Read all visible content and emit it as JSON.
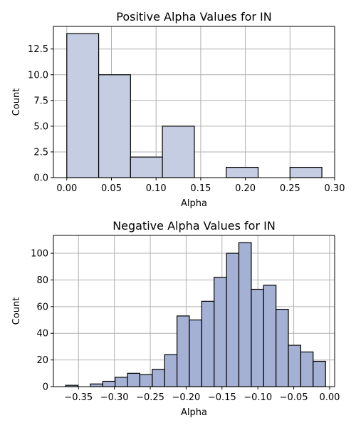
{
  "chart_data": [
    {
      "type": "bar",
      "title": "Positive Alpha Values for IN",
      "xlabel": "Alpha",
      "ylabel": "Count",
      "xlim": [
        -0.015,
        0.3
      ],
      "ylim": [
        0,
        14.7
      ],
      "xticks": [
        0.0,
        0.05,
        0.1,
        0.15,
        0.2,
        0.25,
        0.3
      ],
      "xtick_labels": [
        "0.00",
        "0.05",
        "0.10",
        "0.15",
        "0.20",
        "0.25",
        "0.30"
      ],
      "yticks": [
        0,
        2.5,
        5,
        7.5,
        10,
        12.5
      ],
      "ytick_labels": [
        "0.0",
        "2.5",
        "5.0",
        "7.5",
        "10.0",
        "12.5"
      ],
      "grid": true,
      "bar_color": "#c4cde1",
      "bin_edges": [
        0.0,
        0.0357,
        0.0714,
        0.1071,
        0.1429,
        0.1786,
        0.2143,
        0.25,
        0.2857
      ],
      "values": [
        14,
        10,
        2,
        5,
        0,
        1,
        0,
        1
      ]
    },
    {
      "type": "bar",
      "title": "Negative Alpha Values for IN",
      "xlabel": "Alpha",
      "ylabel": "Count",
      "xlim": [
        -0.385,
        0.007
      ],
      "ylim": [
        0,
        113.4
      ],
      "xticks": [
        -0.35,
        -0.3,
        -0.25,
        -0.2,
        -0.15,
        -0.1,
        -0.05,
        0.0
      ],
      "xtick_labels": [
        "−0.35",
        "−0.30",
        "−0.25",
        "−0.20",
        "−0.15",
        "−0.10",
        "−0.05",
        "0.00"
      ],
      "yticks": [
        0,
        20,
        40,
        60,
        80,
        100
      ],
      "ytick_labels": [
        "0",
        "20",
        "40",
        "60",
        "80",
        "100"
      ],
      "grid": true,
      "bar_color": "#a5b1d4",
      "bin_edges": [
        -0.368,
        -0.3507,
        -0.3335,
        -0.3162,
        -0.299,
        -0.2817,
        -0.2645,
        -0.2472,
        -0.23,
        -0.2127,
        -0.1955,
        -0.1782,
        -0.161,
        -0.1437,
        -0.1265,
        -0.1092,
        -0.092,
        -0.0747,
        -0.0575,
        -0.0402,
        -0.023,
        -0.0057
      ],
      "values": [
        1,
        0,
        2,
        4,
        7,
        10,
        9,
        13,
        24,
        53,
        50,
        64,
        82,
        100,
        108,
        73,
        76,
        58,
        31,
        26,
        19
      ]
    }
  ]
}
